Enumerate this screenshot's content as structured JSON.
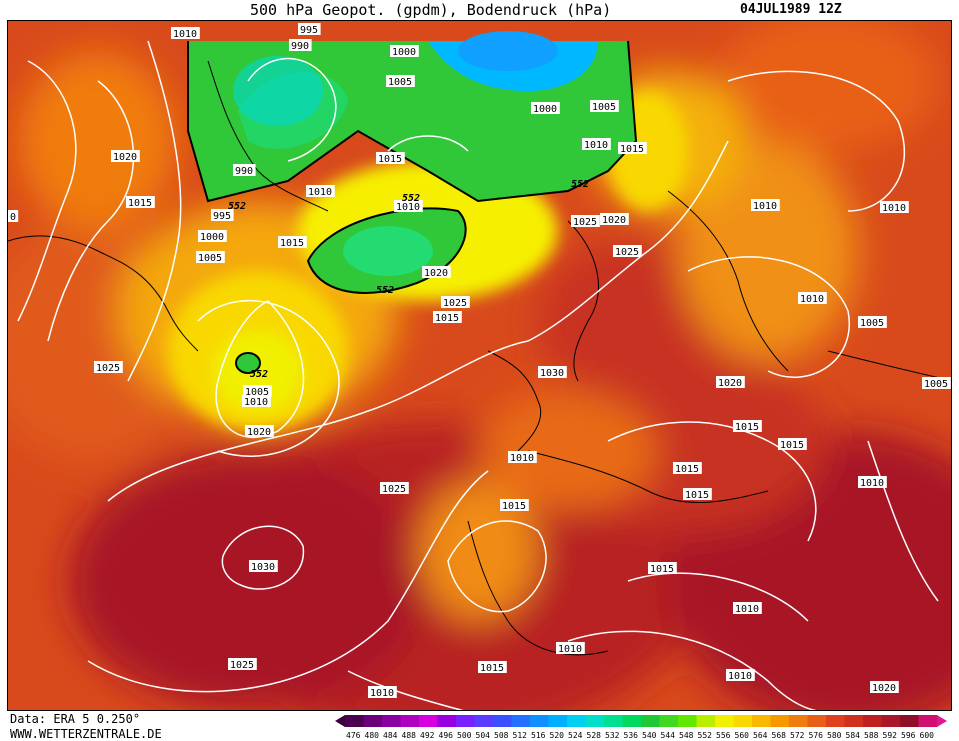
{
  "header": {
    "title": "500 hPa Geopot. (gpdm), Bodendruck (hPa)",
    "date": "04JUL1989 12Z"
  },
  "footer": {
    "source": "Data: ERA 5 0.250°",
    "site": "WWW.WETTERZENTRALE.DE"
  },
  "legend": {
    "values": [
      "476",
      "480",
      "484",
      "488",
      "492",
      "496",
      "500",
      "504",
      "508",
      "512",
      "516",
      "520",
      "524",
      "528",
      "532",
      "536",
      "540",
      "544",
      "548",
      "552",
      "556",
      "560",
      "564",
      "568",
      "572",
      "576",
      "580",
      "584",
      "588",
      "592",
      "596",
      "600"
    ],
    "colors": [
      "#4b0050",
      "#6c007a",
      "#8a00a0",
      "#b000c0",
      "#d600e0",
      "#9b00e0",
      "#7a20ff",
      "#5a3cff",
      "#3a50ff",
      "#2470ff",
      "#1090ff",
      "#00b0ff",
      "#00d0f0",
      "#00e0c8",
      "#00e090",
      "#00d860",
      "#20c838",
      "#40d820",
      "#60e800",
      "#b8ee00",
      "#f0f000",
      "#f8d800",
      "#f8b800",
      "#f89800",
      "#f07c10",
      "#e86018",
      "#e04020",
      "#d03020",
      "#c02020",
      "#a81828",
      "#900f28",
      "#d01070"
    ]
  },
  "pressure_labels": [
    {
      "text": "995"
    },
    {
      "text": "1010"
    },
    {
      "text": "990"
    },
    {
      "text": "1000"
    },
    {
      "text": "1005"
    },
    {
      "text": "1000"
    },
    {
      "text": "1005"
    },
    {
      "text": "1010"
    },
    {
      "text": "1015"
    },
    {
      "text": "1020"
    },
    {
      "text": "1015"
    },
    {
      "text": "990"
    },
    {
      "text": "995"
    },
    {
      "text": "1000"
    },
    {
      "text": "1005"
    },
    {
      "text": "1015"
    },
    {
      "text": "1010"
    },
    {
      "text": "1015"
    },
    {
      "text": "1010"
    },
    {
      "text": "1020"
    },
    {
      "text": "1025"
    },
    {
      "text": "1025"
    },
    {
      "text": "1020"
    },
    {
      "text": "1025"
    },
    {
      "text": "1015"
    },
    {
      "text": "1010"
    },
    {
      "text": "1010"
    },
    {
      "text": "1010"
    },
    {
      "text": "1010"
    },
    {
      "text": "1005"
    },
    {
      "text": "1025"
    },
    {
      "text": "1005"
    },
    {
      "text": "1010"
    },
    {
      "text": "1020"
    },
    {
      "text": "1030"
    },
    {
      "text": "1020"
    },
    {
      "text": "1005"
    },
    {
      "text": "1015"
    },
    {
      "text": "1015"
    },
    {
      "text": "1010"
    },
    {
      "text": "1025"
    },
    {
      "text": "1015"
    },
    {
      "text": "1015"
    },
    {
      "text": "1030"
    },
    {
      "text": "1015"
    },
    {
      "text": "1015"
    },
    {
      "text": "1010"
    },
    {
      "text": "1025"
    },
    {
      "text": "1015"
    },
    {
      "text": "1010"
    },
    {
      "text": "1010"
    },
    {
      "text": "1020"
    },
    {
      "text": "1010"
    },
    {
      "text": "0"
    }
  ],
  "geopot_labels": [
    {
      "text": "552"
    },
    {
      "text": "552"
    },
    {
      "text": "552"
    },
    {
      "text": "552"
    },
    {
      "text": "552"
    }
  ]
}
